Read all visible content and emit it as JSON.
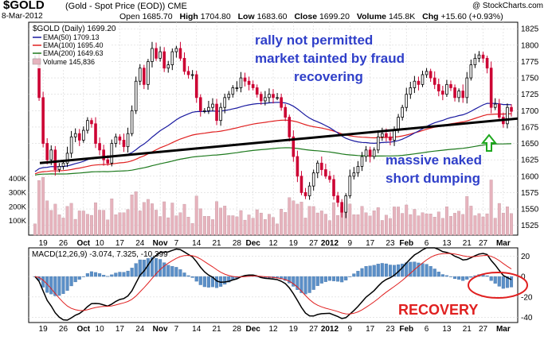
{
  "header": {
    "symbol": "$GOLD",
    "subtitle": "(Gold - Spot Price (EOD)) CME",
    "brand": "@ StockCharts.com",
    "date": "8-Mar-2012",
    "open_label": "Open",
    "open": "1685.70",
    "high_label": "High",
    "high": "1704.80",
    "low_label": "Low",
    "low": "1683.60",
    "close_label": "Close",
    "close": "1699.20",
    "volume_label": "Volume",
    "volume": "145.8K",
    "chg_label": "Chg",
    "chg": "+15.60 (+0.93%)"
  },
  "legend": {
    "price": "$GOLD (Daily) 1699.20",
    "ema50": "EMA(50) 1709.13",
    "ema100": "EMA(100) 1695.40",
    "ema200": "EMA(200) 1649.63",
    "volume": "Volume 145,836",
    "macd": "MACD(12,26,9) -3.074, 7.325, -10.399"
  },
  "colors": {
    "up": "#000000",
    "down": "#cc0033",
    "ema50": "#1a1aa0",
    "ema100": "#e02020",
    "ema200": "#1e7a1e",
    "volume": "#e6b3bd",
    "macd": "#000000",
    "signal": "#e02020",
    "hist": "#5b8fc7",
    "annot": "#2f3fc9",
    "recovery": "#e02020",
    "arrow": "#1ea81e"
  },
  "annotations": {
    "a1": "rally not permitted",
    "a2": "market tainted by fraud",
    "a3": "recovering",
    "a4": "massive naked",
    "a5": "short dumping",
    "recovery": "RECOVERY"
  },
  "chart_data": [
    {
      "type": "candlestick",
      "panel": "price",
      "ylim": [
        1510,
        1835
      ],
      "yticks": [
        1525,
        1550,
        1575,
        1600,
        1625,
        1650,
        1675,
        1700,
        1725,
        1750,
        1775,
        1800,
        1825
      ],
      "volume_ticks": [
        "100K",
        "200K",
        "300K",
        "400K"
      ],
      "volume_max": 450,
      "x_labels": [
        "19",
        "26",
        "Oct",
        "10",
        "17",
        "24",
        "Nov",
        "7",
        "14",
        "21",
        "28",
        "Dec",
        "12",
        "19",
        "27",
        "2012",
        "9",
        "17",
        "23",
        "Feb",
        "6",
        "13",
        "21",
        "27",
        "Mar"
      ],
      "close": [
        1780,
        1720,
        1650,
        1625,
        1640,
        1610,
        1615,
        1620,
        1635,
        1660,
        1665,
        1655,
        1670,
        1685,
        1680,
        1650,
        1640,
        1625,
        1620,
        1650,
        1660,
        1655,
        1645,
        1665,
        1700,
        1745,
        1765,
        1740,
        1775,
        1795,
        1780,
        1790,
        1765,
        1770,
        1790,
        1795,
        1780,
        1760,
        1755,
        1755,
        1720,
        1700,
        1700,
        1705,
        1710,
        1685,
        1705,
        1720,
        1725,
        1735,
        1735,
        1750,
        1745,
        1740,
        1735,
        1725,
        1715,
        1720,
        1725,
        1720,
        1720,
        1705,
        1690,
        1660,
        1630,
        1600,
        1575,
        1570,
        1585,
        1605,
        1620,
        1610,
        1600,
        1595,
        1570,
        1560,
        1545,
        1570,
        1600,
        1605,
        1615,
        1630,
        1640,
        1630,
        1640,
        1660,
        1665,
        1660,
        1655,
        1670,
        1690,
        1705,
        1725,
        1735,
        1745,
        1740,
        1755,
        1760,
        1750,
        1740,
        1730,
        1725,
        1740,
        1735,
        1720,
        1730,
        1720,
        1750,
        1770,
        1780,
        1785,
        1780,
        1765,
        1705,
        1710,
        1690,
        1680,
        1705,
        1699
      ],
      "ema_start": 1600,
      "ema50_end": 1709.13,
      "ema100_end": 1695.4,
      "ema200_end": 1649.63,
      "trendline": [
        1620,
        1688
      ]
    },
    {
      "type": "line+histogram",
      "panel": "macd",
      "ylim": [
        -45,
        28
      ],
      "yticks": [
        -40,
        -20,
        0,
        20
      ],
      "macd_end": -3.074,
      "signal_end": 7.325,
      "hist_end": -10.399
    }
  ]
}
